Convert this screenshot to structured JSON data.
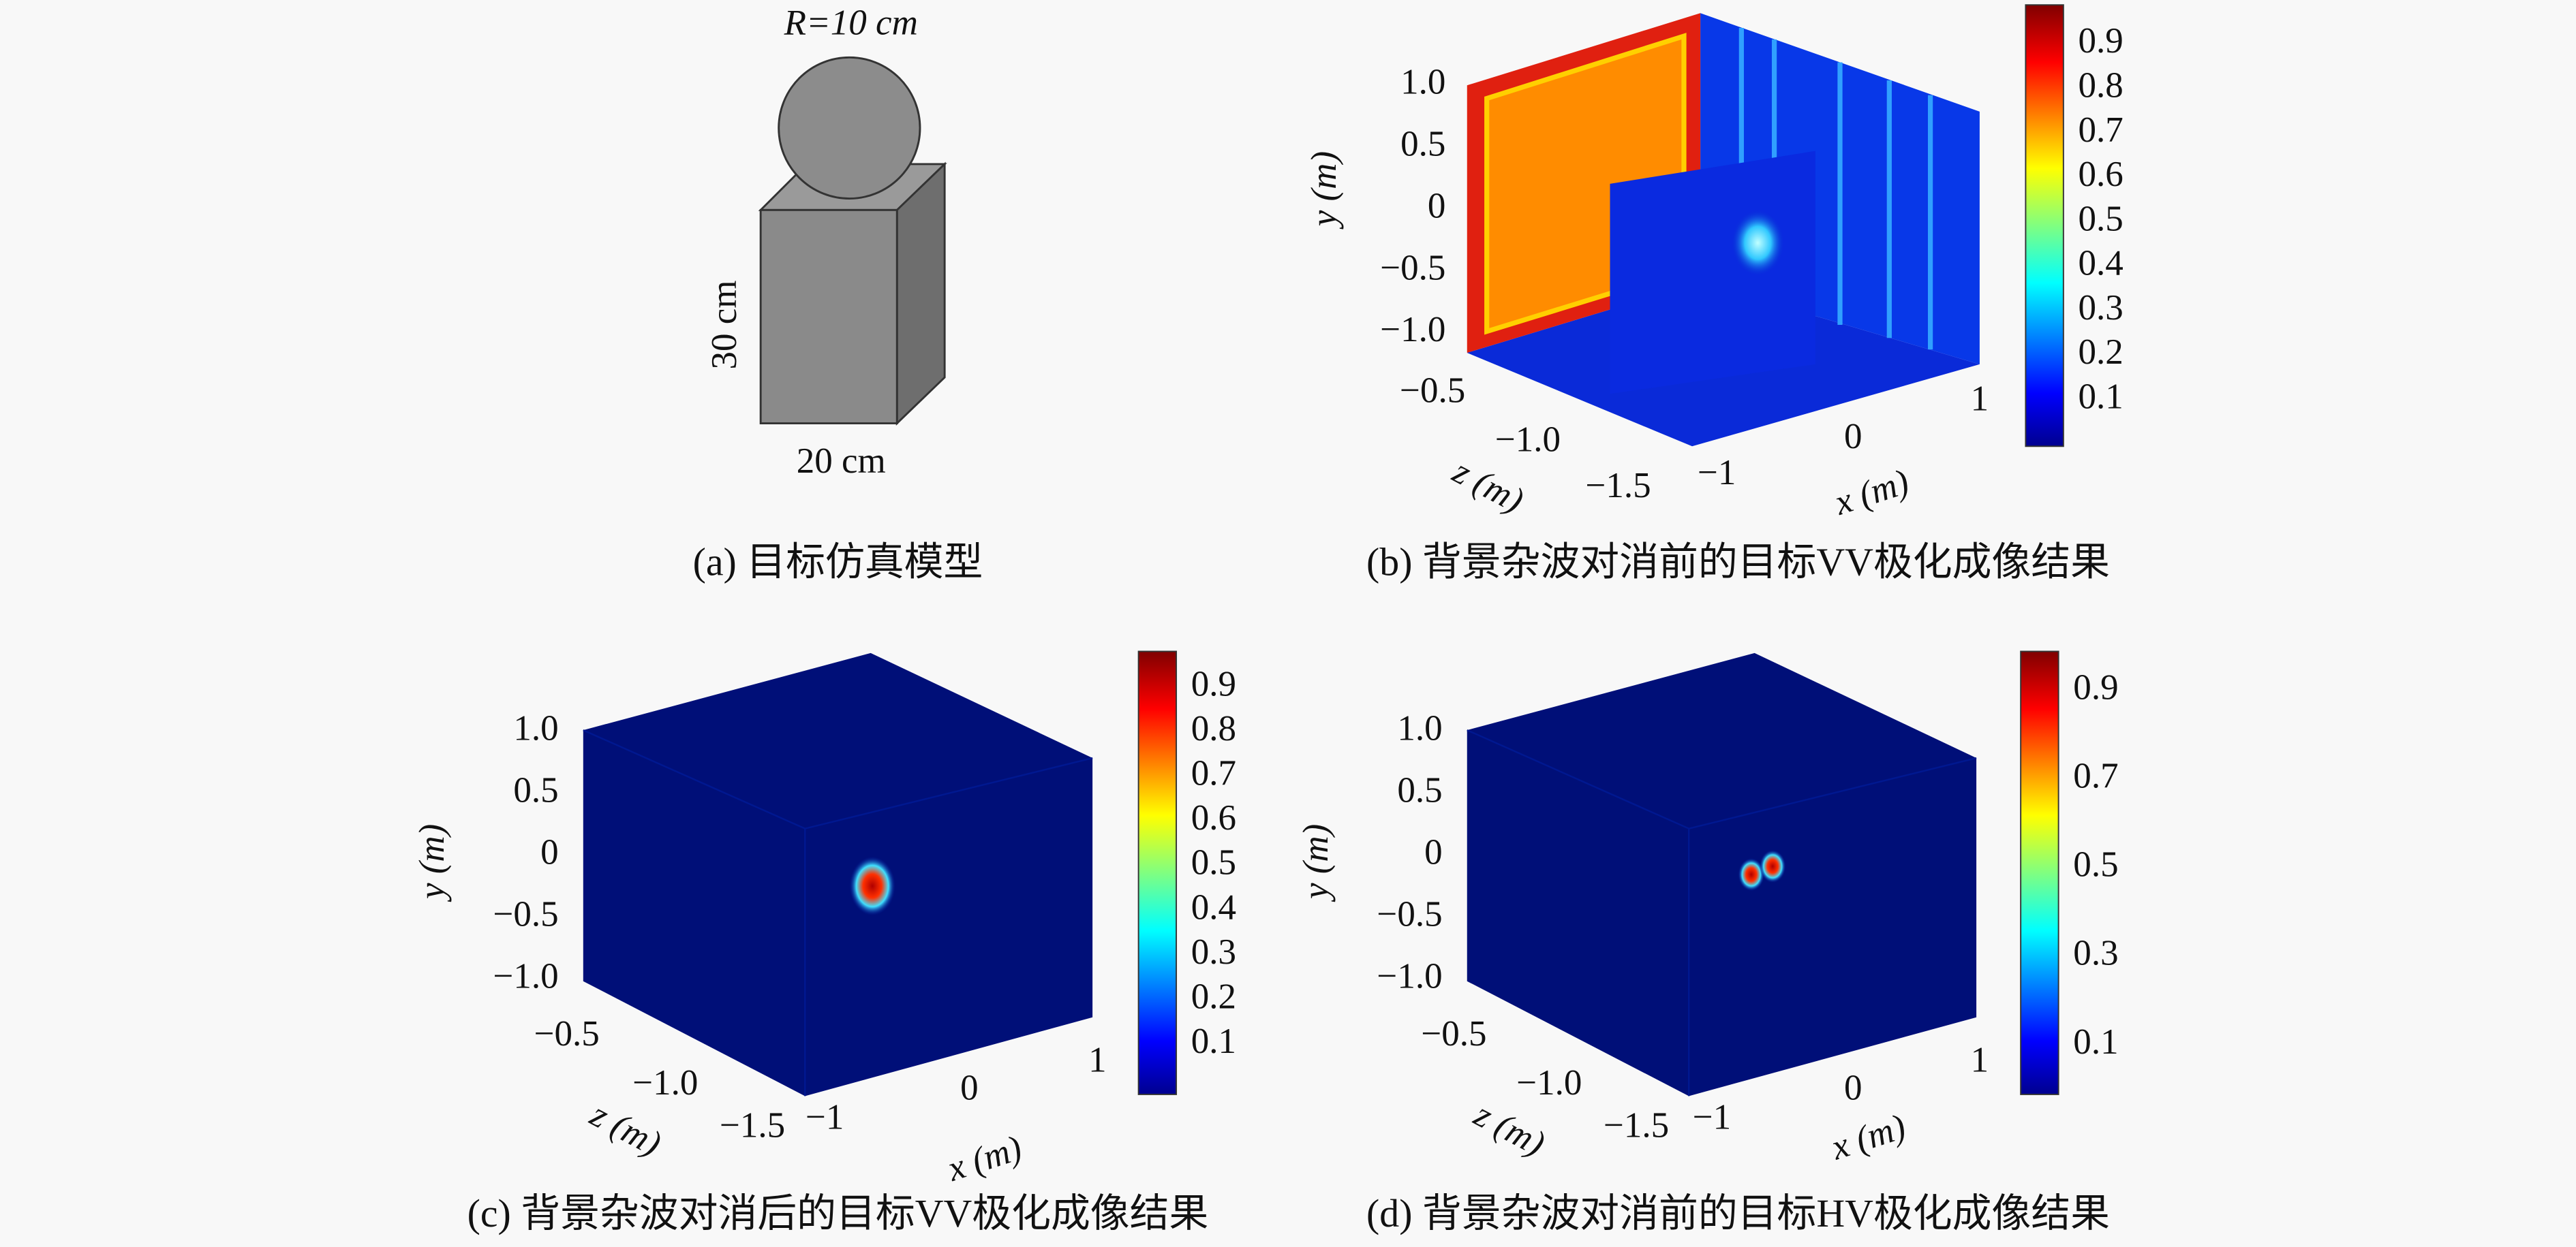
{
  "panels": [
    {
      "caption": "(a) 目标仿真模型",
      "radius_label": "R=10 cm",
      "height_label": "30 cm",
      "width_label": "20 cm"
    },
    {
      "caption": "(b) 背景杂波对消前的目标VV极化成像结果",
      "y_label": "y (m)",
      "z_label": "z (m)",
      "x_label": "x (m)",
      "y_ticks": [
        "1.0",
        "0.5",
        "0",
        "−0.5",
        "−1.0"
      ],
      "z_ticks": [
        "−0.5",
        "−1.0",
        "−1.5"
      ],
      "x_ticks": [
        "−1",
        "0",
        "1"
      ],
      "colorbar_ticks": [
        "0.9",
        "0.8",
        "0.7",
        "0.6",
        "0.5",
        "0.4",
        "0.3",
        "0.2",
        "0.1"
      ]
    },
    {
      "caption": "(c) 背景杂波对消后的目标VV极化成像结果",
      "y_label": "y (m)",
      "z_label": "z (m)",
      "x_label": "x (m)",
      "y_ticks": [
        "1.0",
        "0.5",
        "0",
        "−0.5",
        "−1.0"
      ],
      "z_ticks": [
        "−0.5",
        "−1.0",
        "−1.5"
      ],
      "x_ticks": [
        "−1",
        "0",
        "1"
      ],
      "colorbar_ticks": [
        "0.9",
        "0.8",
        "0.7",
        "0.6",
        "0.5",
        "0.4",
        "0.3",
        "0.2",
        "0.1"
      ]
    },
    {
      "caption": "(d) 背景杂波对消前的目标HV极化成像结果",
      "y_label": "y (m)",
      "z_label": "z (m)",
      "x_label": "x (m)",
      "y_ticks": [
        "1.0",
        "0.5",
        "0",
        "−0.5",
        "−1.0"
      ],
      "z_ticks": [
        "−0.5",
        "−1.0",
        "−1.5"
      ],
      "x_ticks": [
        "−1",
        "0",
        "1"
      ],
      "colorbar_ticks": [
        "0.9",
        "0.7",
        "0.5",
        "0.3",
        "0.1"
      ]
    }
  ]
}
